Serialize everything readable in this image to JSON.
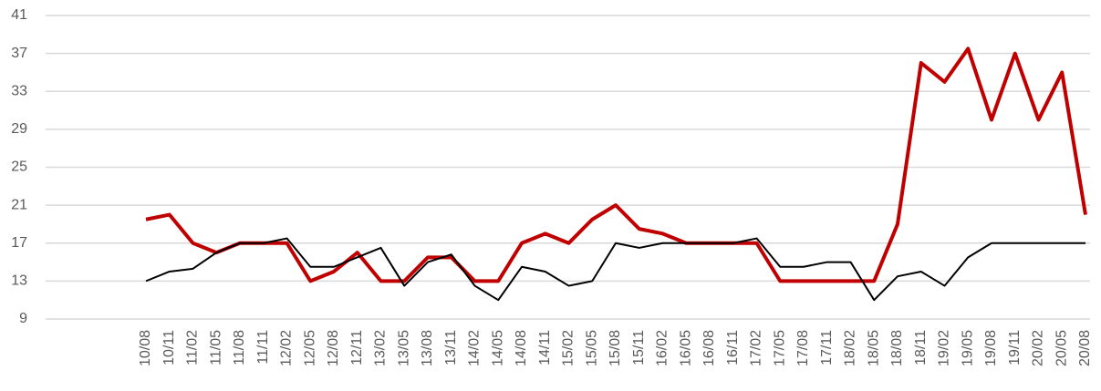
{
  "chart_data": {
    "type": "line",
    "categories": [
      "10/08",
      "10/11",
      "11/02",
      "11/05",
      "11/08",
      "11/11",
      "12/02",
      "12/05",
      "12/08",
      "12/11",
      "13/02",
      "13/05",
      "13/08",
      "13/11",
      "14/02",
      "14/05",
      "14/08",
      "14/11",
      "15/02",
      "15/05",
      "15/08",
      "15/11",
      "16/02",
      "16/05",
      "16/08",
      "16/11",
      "17/02",
      "17/05",
      "17/08",
      "17/11",
      "18/02",
      "18/05",
      "18/08",
      "18/11",
      "19/02",
      "19/05",
      "19/08",
      "19/11",
      "20/02",
      "20/05",
      "20/08"
    ],
    "series": [
      {
        "color": "#c00000",
        "values": [
          19.5,
          20,
          17,
          16,
          17,
          17,
          17,
          13,
          14,
          16,
          13,
          13,
          15.5,
          15.5,
          13,
          13,
          17,
          18,
          17,
          19.5,
          21,
          18.5,
          18,
          17,
          17,
          17,
          17,
          13,
          13,
          13,
          13,
          13,
          19,
          36,
          34,
          37.5,
          30,
          37,
          30,
          35,
          20
        ]
      },
      {
        "color": "#000000",
        "values": [
          13,
          14,
          14.3,
          16,
          17,
          17,
          17.5,
          14.5,
          14.5,
          15.5,
          16.5,
          12.5,
          15,
          15.8,
          12.5,
          11,
          14.5,
          14,
          12.5,
          13,
          17,
          16.5,
          17,
          17,
          17,
          17,
          17.5,
          14.5,
          14.5,
          15,
          15,
          11,
          13.5,
          14,
          12.5,
          15.5,
          17,
          17,
          17,
          17,
          17
        ]
      }
    ],
    "ylim": [
      9,
      41
    ],
    "yticks": [
      9,
      13,
      17,
      21,
      25,
      29,
      33,
      37,
      41
    ],
    "grid": true
  }
}
